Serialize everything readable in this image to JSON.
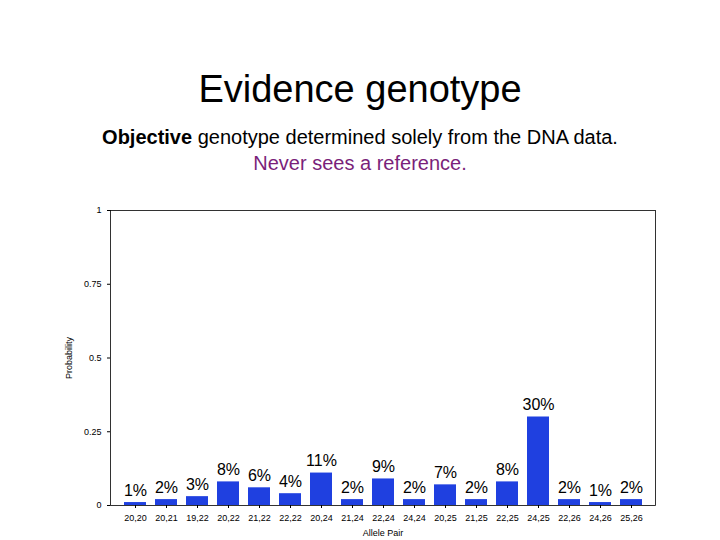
{
  "chart_data": {
    "type": "bar",
    "title": "Evidence genotype",
    "subtitle": [
      "Objective genotype determined solely from the DNA data.",
      "Never sees a reference."
    ],
    "x_label": "Allele Pair",
    "y_label": "Probability",
    "categories": [
      "20,20",
      "20,21",
      "19,22",
      "20,22",
      "21,22",
      "22,22",
      "20,24",
      "21,24",
      "22,24",
      "24,24",
      "20,25",
      "21,25",
      "22,25",
      "24,25",
      "22,26",
      "24,26",
      "25,26"
    ],
    "values": [
      0.01,
      0.02,
      0.03,
      0.08,
      0.06,
      0.04,
      0.11,
      0.02,
      0.09,
      0.02,
      0.07,
      0.02,
      0.08,
      0.3,
      0.02,
      0.01,
      0.02
    ],
    "value_labels": [
      "1%",
      "2%",
      "3%",
      "8%",
      "6%",
      "4%",
      "11%",
      "2%",
      "9%",
      "2%",
      "7%",
      "2%",
      "8%",
      "30%",
      "2%",
      "1%",
      "2%"
    ],
    "color": "#1f40e0",
    "ylim": [
      0,
      1
    ],
    "yticks": [
      0,
      0.25,
      0.5,
      0.75,
      1
    ],
    "grid": false,
    "data_labels": true
  }
}
